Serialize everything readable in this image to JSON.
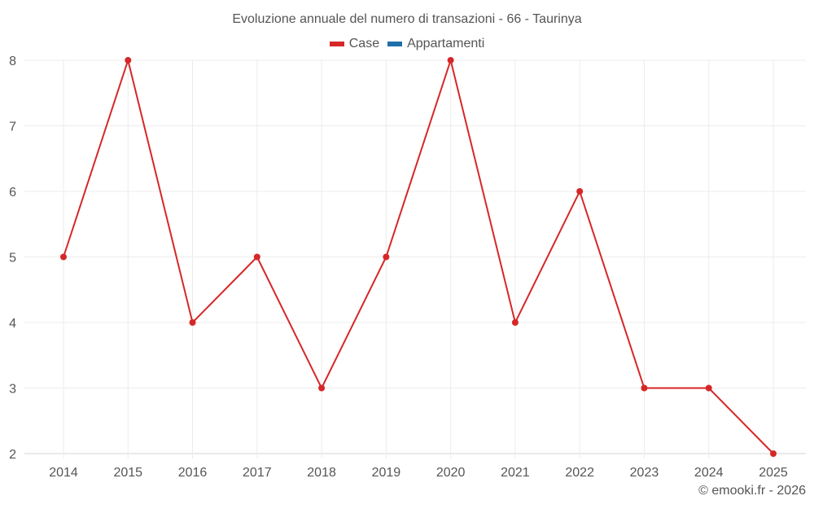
{
  "title": "Evoluzione annuale del numero di transazioni - 66 - Taurinya",
  "legend": [
    {
      "label": "Case",
      "color": "#d62728"
    },
    {
      "label": "Appartamenti",
      "color": "#1f77b4"
    }
  ],
  "credit": "© emooki.fr - 2026",
  "chart_data": {
    "type": "line",
    "title": "Evoluzione annuale del numero di transazioni - 66 - Taurinya",
    "xlabel": "",
    "ylabel": "",
    "categories": [
      "2014",
      "2015",
      "2016",
      "2017",
      "2018",
      "2019",
      "2020",
      "2021",
      "2022",
      "2023",
      "2024",
      "2025"
    ],
    "series": [
      {
        "name": "Case",
        "color": "#d62728",
        "values": [
          5,
          8,
          4,
          5,
          3,
          5,
          8,
          4,
          6,
          3,
          3,
          2
        ]
      },
      {
        "name": "Appartamenti",
        "color": "#1f77b4",
        "values": []
      }
    ],
    "yticks": [
      2,
      3,
      4,
      5,
      6,
      7,
      8
    ],
    "ylim": [
      2,
      8
    ],
    "grid": true,
    "legend_position": "top"
  }
}
